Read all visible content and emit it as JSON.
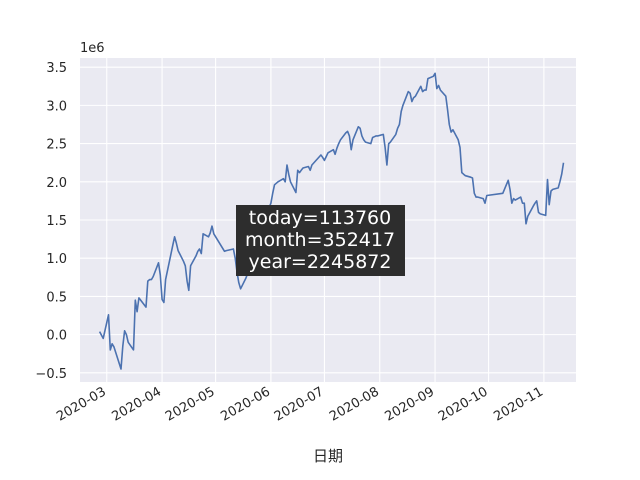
{
  "chart_data": {
    "type": "line",
    "xlabel": "日期",
    "y_offset_label": "1e6",
    "xlim": [
      "2020-02-15",
      "2020-11-19"
    ],
    "ylim": [
      -0.62,
      3.62
    ],
    "y_ticks": [
      -0.5,
      0.0,
      0.5,
      1.0,
      1.5,
      2.0,
      2.5,
      3.0,
      3.5
    ],
    "y_tick_labels": [
      "−0.5",
      "0.0",
      "0.5",
      "1.0",
      "1.5",
      "2.0",
      "2.5",
      "3.0",
      "3.5"
    ],
    "x_ticks": [
      "2020-03-01",
      "2020-04-01",
      "2020-05-01",
      "2020-06-01",
      "2020-07-01",
      "2020-08-01",
      "2020-09-01",
      "2020-10-01",
      "2020-11-01"
    ],
    "x_tick_labels": [
      "2020-03",
      "2020-04",
      "2020-05",
      "2020-06",
      "2020-07",
      "2020-08",
      "2020-09",
      "2020-10",
      "2020-11"
    ],
    "grid": true,
    "annotation": {
      "lines": [
        "today=113760",
        "month=352417",
        "year=2245872"
      ]
    },
    "series": [
      {
        "color": "#4c72b0",
        "points": [
          [
            "2020-02-26",
            0.04
          ],
          [
            "2020-02-28",
            -0.05
          ],
          [
            "2020-03-02",
            0.26
          ],
          [
            "2020-03-03",
            -0.2
          ],
          [
            "2020-03-04",
            -0.12
          ],
          [
            "2020-03-05",
            -0.16
          ],
          [
            "2020-03-09",
            -0.45
          ],
          [
            "2020-03-10",
            -0.15
          ],
          [
            "2020-03-11",
            0.05
          ],
          [
            "2020-03-12",
            0.0
          ],
          [
            "2020-03-13",
            -0.1
          ],
          [
            "2020-03-16",
            -0.2
          ],
          [
            "2020-03-17",
            0.45
          ],
          [
            "2020-03-18",
            0.3
          ],
          [
            "2020-03-19",
            0.48
          ],
          [
            "2020-03-23",
            0.36
          ],
          [
            "2020-03-24",
            0.7
          ],
          [
            "2020-03-25",
            0.72
          ],
          [
            "2020-03-26",
            0.72
          ],
          [
            "2020-03-27",
            0.76
          ],
          [
            "2020-03-30",
            0.94
          ],
          [
            "2020-03-31",
            0.78
          ],
          [
            "2020-04-01",
            0.46
          ],
          [
            "2020-04-02",
            0.42
          ],
          [
            "2020-04-03",
            0.72
          ],
          [
            "2020-04-07",
            1.17
          ],
          [
            "2020-04-08",
            1.28
          ],
          [
            "2020-04-09",
            1.2
          ],
          [
            "2020-04-10",
            1.1
          ],
          [
            "2020-04-13",
            0.96
          ],
          [
            "2020-04-14",
            0.9
          ],
          [
            "2020-04-15",
            0.7
          ],
          [
            "2020-04-16",
            0.58
          ],
          [
            "2020-04-17",
            0.9
          ],
          [
            "2020-04-20",
            1.03
          ],
          [
            "2020-04-21",
            1.09
          ],
          [
            "2020-04-22",
            1.12
          ],
          [
            "2020-04-23",
            1.06
          ],
          [
            "2020-04-24",
            1.32
          ],
          [
            "2020-04-27",
            1.28
          ],
          [
            "2020-04-28",
            1.33
          ],
          [
            "2020-04-29",
            1.42
          ],
          [
            "2020-04-30",
            1.32
          ],
          [
            "2020-05-06",
            1.09
          ],
          [
            "2020-05-07",
            1.1
          ],
          [
            "2020-05-11",
            1.12
          ],
          [
            "2020-05-12",
            1.0
          ],
          [
            "2020-05-13",
            0.82
          ],
          [
            "2020-05-14",
            0.68
          ],
          [
            "2020-05-15",
            0.6
          ],
          [
            "2020-05-18",
            0.74
          ],
          [
            "2020-05-19",
            0.8
          ],
          [
            "2020-05-22",
            0.84
          ],
          [
            "2020-05-25",
            0.98
          ],
          [
            "2020-05-26",
            1.12
          ],
          [
            "2020-05-27",
            1.3
          ],
          [
            "2020-05-28",
            1.42
          ],
          [
            "2020-05-29",
            1.55
          ],
          [
            "2020-06-01",
            1.72
          ],
          [
            "2020-06-02",
            1.85
          ],
          [
            "2020-06-03",
            1.96
          ],
          [
            "2020-06-05",
            2.0
          ],
          [
            "2020-06-08",
            2.04
          ],
          [
            "2020-06-09",
            2.0
          ],
          [
            "2020-06-10",
            2.22
          ],
          [
            "2020-06-11",
            2.1
          ],
          [
            "2020-06-12",
            2.0
          ],
          [
            "2020-06-15",
            1.86
          ],
          [
            "2020-06-16",
            2.15
          ],
          [
            "2020-06-17",
            2.12
          ],
          [
            "2020-06-18",
            2.15
          ],
          [
            "2020-06-19",
            2.18
          ],
          [
            "2020-06-22",
            2.2
          ],
          [
            "2020-06-23",
            2.15
          ],
          [
            "2020-06-24",
            2.22
          ],
          [
            "2020-06-29",
            2.35
          ],
          [
            "2020-06-30",
            2.32
          ],
          [
            "2020-07-01",
            2.28
          ],
          [
            "2020-07-02",
            2.33
          ],
          [
            "2020-07-03",
            2.38
          ],
          [
            "2020-07-06",
            2.42
          ],
          [
            "2020-07-07",
            2.36
          ],
          [
            "2020-07-08",
            2.44
          ],
          [
            "2020-07-09",
            2.5
          ],
          [
            "2020-07-10",
            2.55
          ],
          [
            "2020-07-13",
            2.64
          ],
          [
            "2020-07-14",
            2.66
          ],
          [
            "2020-07-15",
            2.6
          ],
          [
            "2020-07-16",
            2.42
          ],
          [
            "2020-07-17",
            2.55
          ],
          [
            "2020-07-20",
            2.72
          ],
          [
            "2020-07-21",
            2.7
          ],
          [
            "2020-07-22",
            2.6
          ],
          [
            "2020-07-23",
            2.55
          ],
          [
            "2020-07-24",
            2.52
          ],
          [
            "2020-07-27",
            2.5
          ],
          [
            "2020-07-28",
            2.58
          ],
          [
            "2020-07-29",
            2.59
          ],
          [
            "2020-07-30",
            2.6
          ],
          [
            "2020-07-31",
            2.6
          ],
          [
            "2020-08-03",
            2.62
          ],
          [
            "2020-08-04",
            2.45
          ],
          [
            "2020-08-05",
            2.22
          ],
          [
            "2020-08-06",
            2.5
          ],
          [
            "2020-08-07",
            2.52
          ],
          [
            "2020-08-10",
            2.62
          ],
          [
            "2020-08-11",
            2.7
          ],
          [
            "2020-08-12",
            2.75
          ],
          [
            "2020-08-13",
            2.92
          ],
          [
            "2020-08-14",
            3.0
          ],
          [
            "2020-08-17",
            3.18
          ],
          [
            "2020-08-18",
            3.16
          ],
          [
            "2020-08-19",
            3.05
          ],
          [
            "2020-08-20",
            3.1
          ],
          [
            "2020-08-21",
            3.12
          ],
          [
            "2020-08-24",
            3.25
          ],
          [
            "2020-08-25",
            3.18
          ],
          [
            "2020-08-26",
            3.2
          ],
          [
            "2020-08-27",
            3.2
          ],
          [
            "2020-08-28",
            3.35
          ],
          [
            "2020-08-31",
            3.38
          ],
          [
            "2020-09-01",
            3.42
          ],
          [
            "2020-09-02",
            3.22
          ],
          [
            "2020-09-03",
            3.26
          ],
          [
            "2020-09-04",
            3.2
          ],
          [
            "2020-09-07",
            3.12
          ],
          [
            "2020-09-08",
            2.95
          ],
          [
            "2020-09-09",
            2.75
          ],
          [
            "2020-09-10",
            2.65
          ],
          [
            "2020-09-11",
            2.68
          ],
          [
            "2020-09-14",
            2.55
          ],
          [
            "2020-09-15",
            2.45
          ],
          [
            "2020-09-16",
            2.12
          ],
          [
            "2020-09-17",
            2.1
          ],
          [
            "2020-09-18",
            2.08
          ],
          [
            "2020-09-21",
            2.06
          ],
          [
            "2020-09-22",
            2.05
          ],
          [
            "2020-09-23",
            1.85
          ],
          [
            "2020-09-24",
            1.8
          ],
          [
            "2020-09-25",
            1.8
          ],
          [
            "2020-09-28",
            1.78
          ],
          [
            "2020-09-29",
            1.72
          ],
          [
            "2020-09-30",
            1.82
          ],
          [
            "2020-10-09",
            1.85
          ],
          [
            "2020-10-12",
            2.02
          ],
          [
            "2020-10-13",
            1.9
          ],
          [
            "2020-10-14",
            1.72
          ],
          [
            "2020-10-15",
            1.78
          ],
          [
            "2020-10-16",
            1.76
          ],
          [
            "2020-10-19",
            1.8
          ],
          [
            "2020-10-20",
            1.72
          ],
          [
            "2020-10-21",
            1.72
          ],
          [
            "2020-10-22",
            1.45
          ],
          [
            "2020-10-23",
            1.55
          ],
          [
            "2020-10-26",
            1.68
          ],
          [
            "2020-10-27",
            1.72
          ],
          [
            "2020-10-28",
            1.75
          ],
          [
            "2020-10-29",
            1.6
          ],
          [
            "2020-10-30",
            1.58
          ],
          [
            "2020-11-02",
            1.56
          ],
          [
            "2020-11-03",
            2.03
          ],
          [
            "2020-11-04",
            1.7
          ],
          [
            "2020-11-05",
            1.88
          ],
          [
            "2020-11-06",
            1.9
          ],
          [
            "2020-11-09",
            1.92
          ],
          [
            "2020-11-10",
            2.0
          ],
          [
            "2020-11-11",
            2.1
          ],
          [
            "2020-11-12",
            2.25
          ]
        ]
      }
    ]
  }
}
